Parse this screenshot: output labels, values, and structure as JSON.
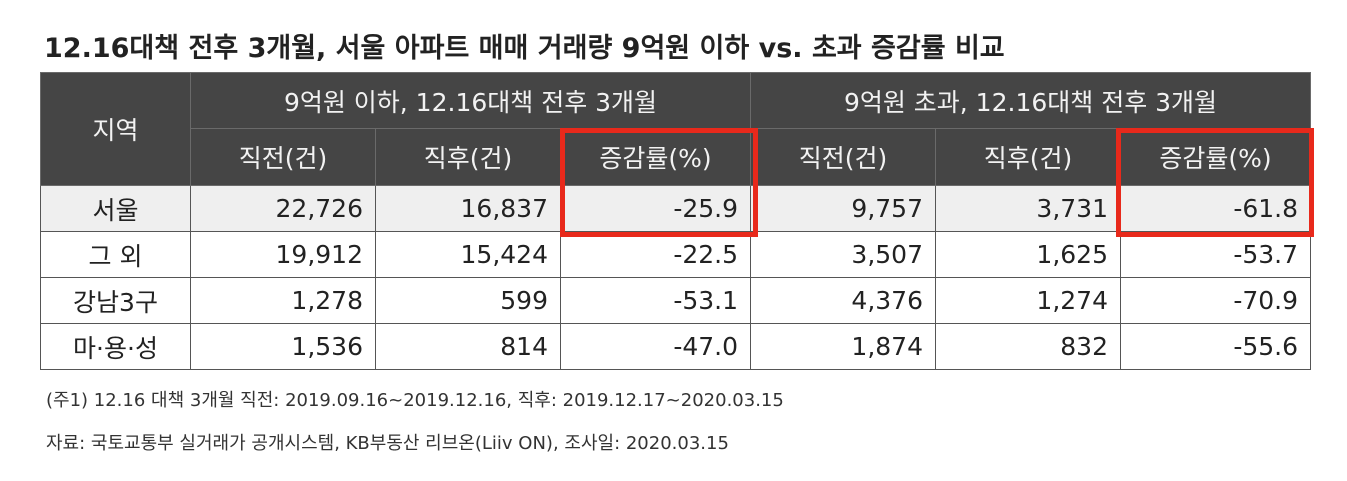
{
  "title": "12.16대책 전후 3개월, 서울 아파트 매매 거래량 9억원 이하 vs. 초과 증감률 비교",
  "table": {
    "region_header": "지역",
    "groups": [
      "9억원 이하, 12.16대책 전후 3개월",
      "9억원 초과, 12.16대책 전후 3개월"
    ],
    "subheaders": [
      "직전(건)",
      "직후(건)",
      "증감률(%)",
      "직전(건)",
      "직후(건)",
      "증감률(%)"
    ],
    "rows": [
      [
        "서울",
        "22,726",
        "16,837",
        "-25.9",
        "9,757",
        "3,731",
        "-61.8"
      ],
      [
        "그 외",
        "19,912",
        "15,424",
        "-22.5",
        "3,507",
        "1,625",
        "-53.7"
      ],
      [
        "강남3구",
        "1,278",
        "599",
        "-53.1",
        "4,376",
        "1,274",
        "-70.9"
      ],
      [
        "마·용·성",
        "1,536",
        "814",
        "-47.0",
        "1,874",
        "832",
        "-55.6"
      ]
    ]
  },
  "notes": [
    "(주1) 12.16 대책 3개월 직전: 2019.09.16~2019.12.16, 직후: 2019.12.17~2020.03.15",
    "자료: 국토교통부 실거래가 공개시스템, KB부동산 리브온(Liiv ON), 조사일: 2020.03.15"
  ]
}
